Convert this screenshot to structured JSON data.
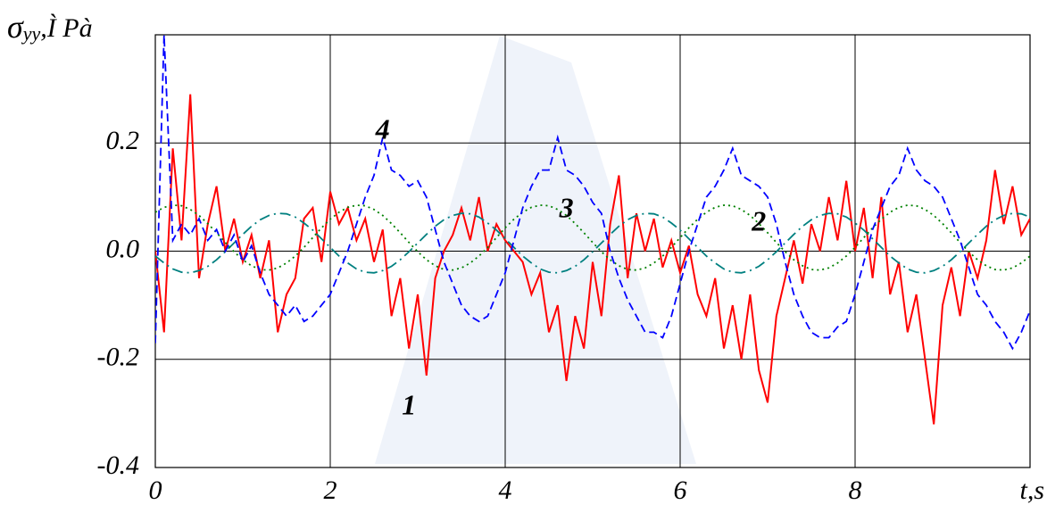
{
  "chart_data": {
    "type": "line",
    "y_label_symbol": "σ",
    "y_label_subscript": "yy",
    "y_label_unit": ",Ì Pà",
    "x_label": "t,s",
    "xlim": [
      0,
      10
    ],
    "xticks": [
      0,
      2,
      4,
      6,
      8
    ],
    "ylim": [
      -0.4,
      0.4
    ],
    "yticks": [
      -0.4,
      -0.2,
      {
        "value": 0,
        "label": "0.0"
      },
      0.2
    ],
    "grid": true,
    "x": [
      0,
      0.1,
      0.2,
      0.3,
      0.4,
      0.5,
      0.6,
      0.7,
      0.8,
      0.9,
      1,
      1.1,
      1.2,
      1.3,
      1.4,
      1.5,
      1.6,
      1.7,
      1.8,
      1.9,
      2,
      2.1,
      2.2,
      2.3,
      2.4,
      2.5,
      2.6,
      2.7,
      2.8,
      2.9,
      3,
      3.1,
      3.2,
      3.3,
      3.4,
      3.5,
      3.6,
      3.7,
      3.8,
      3.9,
      4,
      4.1,
      4.2,
      4.3,
      4.4,
      4.5,
      4.6,
      4.7,
      4.8,
      4.9,
      5,
      5.1,
      5.2,
      5.3,
      5.4,
      5.5,
      5.6,
      5.7,
      5.8,
      5.9,
      6,
      6.1,
      6.2,
      6.3,
      6.4,
      6.5,
      6.6,
      6.7,
      6.8,
      6.9,
      7,
      7.1,
      7.2,
      7.3,
      7.4,
      7.5,
      7.6,
      7.7,
      7.8,
      7.9,
      8,
      8.1,
      8.2,
      8.3,
      8.4,
      8.5,
      8.6,
      8.7,
      8.8,
      8.9,
      9,
      9.1,
      9.2,
      9.3,
      9.4,
      9.5,
      9.6,
      9.7,
      9.8,
      9.9,
      10
    ],
    "series": [
      {
        "color": "#ff0000",
        "style": "solid",
        "values": [
          0,
          -0.15,
          0.19,
          0.02,
          0.29,
          -0.05,
          0.05,
          0.12,
          0,
          0.06,
          -0.02,
          0.03,
          -0.05,
          0.02,
          -0.15,
          -0.08,
          -0.05,
          0.06,
          0.08,
          -0.02,
          0.11,
          0.05,
          0.08,
          0.02,
          0.06,
          -0.02,
          0.04,
          -0.12,
          -0.05,
          -0.18,
          -0.08,
          -0.23,
          -0.05,
          0,
          0.03,
          0.08,
          0.02,
          0.1,
          0,
          0.05,
          0.02,
          0,
          -0.02,
          -0.08,
          -0.04,
          -0.15,
          -0.1,
          -0.24,
          -0.12,
          -0.18,
          -0.02,
          -0.12,
          0.05,
          0.14,
          -0.05,
          0.07,
          0,
          0.06,
          -0.03,
          0.02,
          -0.04,
          0.01,
          -0.08,
          -0.12,
          -0.05,
          -0.18,
          -0.1,
          -0.2,
          -0.08,
          -0.22,
          -0.28,
          -0.12,
          -0.05,
          0.02,
          -0.06,
          0.05,
          0,
          0.1,
          0.02,
          0.13,
          0,
          0.08,
          -0.05,
          0.1,
          -0.08,
          -0.02,
          -0.15,
          -0.08,
          -0.2,
          -0.32,
          -0.1,
          -0.03,
          -0.12,
          0,
          -0.05,
          0.02,
          0.15,
          0.05,
          0.12,
          0.03,
          0.06
        ]
      },
      {
        "color": "#008080",
        "style": "dashdot",
        "values": [
          -0.009,
          -0.022,
          -0.033,
          -0.039,
          -0.04,
          -0.036,
          -0.028,
          -0.016,
          -0.001,
          0.015,
          0.031,
          0.046,
          0.058,
          0.066,
          0.07,
          0.069,
          0.063,
          0.052,
          0.039,
          0.023,
          0.007,
          -0.009,
          -0.022,
          -0.033,
          -0.039,
          -0.04,
          -0.036,
          -0.028,
          -0.016,
          -0.001,
          0.015,
          0.031,
          0.046,
          0.058,
          0.066,
          0.07,
          0.069,
          0.063,
          0.052,
          0.039,
          0.023,
          0.007,
          -0.009,
          -0.022,
          -0.033,
          -0.039,
          -0.04,
          -0.036,
          -0.028,
          -0.016,
          -0.001,
          0.015,
          0.031,
          0.046,
          0.058,
          0.066,
          0.07,
          0.069,
          0.063,
          0.052,
          0.039,
          0.023,
          0.007,
          -0.009,
          -0.022,
          -0.033,
          -0.039,
          -0.04,
          -0.036,
          -0.028,
          -0.016,
          -0.001,
          0.015,
          0.031,
          0.046,
          0.058,
          0.066,
          0.07,
          0.069,
          0.063,
          0.052,
          0.039,
          0.023,
          0.007,
          -0.009,
          -0.022,
          -0.033,
          -0.039,
          -0.04,
          -0.036,
          -0.028,
          -0.016,
          -0.001,
          0.015,
          0.031,
          0.046,
          0.058,
          0.066,
          0.07,
          0.069,
          0.063
        ]
      },
      {
        "color": "#008000",
        "style": "dotted",
        "values": [
          0.072,
          0.081,
          0.085,
          0.084,
          0.077,
          0.066,
          0.051,
          0.034,
          0.016,
          -0.001,
          -0.016,
          -0.027,
          -0.034,
          -0.035,
          -0.031,
          -0.022,
          -0.009,
          0.007,
          0.025,
          0.043,
          0.059,
          0.072,
          0.081,
          0.085,
          0.084,
          0.077,
          0.066,
          0.051,
          0.034,
          0.016,
          -0.001,
          -0.016,
          -0.027,
          -0.034,
          -0.035,
          -0.031,
          -0.022,
          -0.009,
          0.007,
          0.025,
          0.043,
          0.059,
          0.072,
          0.081,
          0.085,
          0.084,
          0.077,
          0.066,
          0.051,
          0.034,
          0.016,
          -0.001,
          -0.016,
          -0.027,
          -0.034,
          -0.035,
          -0.031,
          -0.022,
          -0.009,
          0.007,
          0.025,
          0.043,
          0.059,
          0.072,
          0.081,
          0.085,
          0.084,
          0.077,
          0.066,
          0.051,
          0.034,
          0.016,
          -0.001,
          -0.016,
          -0.027,
          -0.034,
          -0.035,
          -0.031,
          -0.022,
          -0.009,
          0.007,
          0.025,
          0.043,
          0.059,
          0.072,
          0.081,
          0.085,
          0.084,
          0.077,
          0.066,
          0.051,
          0.034,
          0.016,
          -0.001,
          -0.016,
          -0.027,
          -0.034,
          -0.035,
          -0.031,
          -0.022,
          -0.009
        ]
      },
      {
        "color": "#0000ff",
        "style": "dashed",
        "values": [
          -0.17,
          0.4,
          0.02,
          0.05,
          0.03,
          0.06,
          0.02,
          0.04,
          0,
          0.03,
          -0.02,
          0.01,
          -0.04,
          -0.08,
          -0.1,
          -0.12,
          -0.1,
          -0.13,
          -0.12,
          -0.1,
          -0.08,
          -0.04,
          0,
          0.05,
          0.1,
          0.14,
          0.21,
          0.15,
          0.14,
          0.12,
          0.13,
          0.1,
          0.04,
          -0.02,
          -0.06,
          -0.1,
          -0.12,
          -0.13,
          -0.12,
          -0.08,
          -0.04,
          0.02,
          0.08,
          0.12,
          0.15,
          0.15,
          0.21,
          0.15,
          0.14,
          0.12,
          0.09,
          0.07,
          0,
          -0.05,
          -0.09,
          -0.12,
          -0.15,
          -0.15,
          -0.16,
          -0.12,
          -0.06,
          0,
          0.05,
          0.1,
          0.12,
          0.15,
          0.19,
          0.14,
          0.13,
          0.12,
          0.1,
          0.05,
          -0.02,
          -0.08,
          -0.12,
          -0.15,
          -0.16,
          -0.16,
          -0.14,
          -0.13,
          -0.08,
          -0.02,
          0.04,
          0.08,
          0.12,
          0.14,
          0.19,
          0.15,
          0.13,
          0.12,
          0.1,
          0.06,
          0.02,
          -0.03,
          -0.08,
          -0.1,
          -0.13,
          -0.15,
          -0.18,
          -0.15,
          -0.11
        ]
      }
    ],
    "annotations": [
      {
        "text": "1",
        "x": 2.9,
        "y": -0.29
      },
      {
        "text": "2",
        "x": 6.9,
        "y": 0.05
      },
      {
        "text": "3",
        "x": 4.7,
        "y": 0.075
      },
      {
        "text": "4",
        "x": 2.6,
        "y": 0.22
      }
    ]
  }
}
